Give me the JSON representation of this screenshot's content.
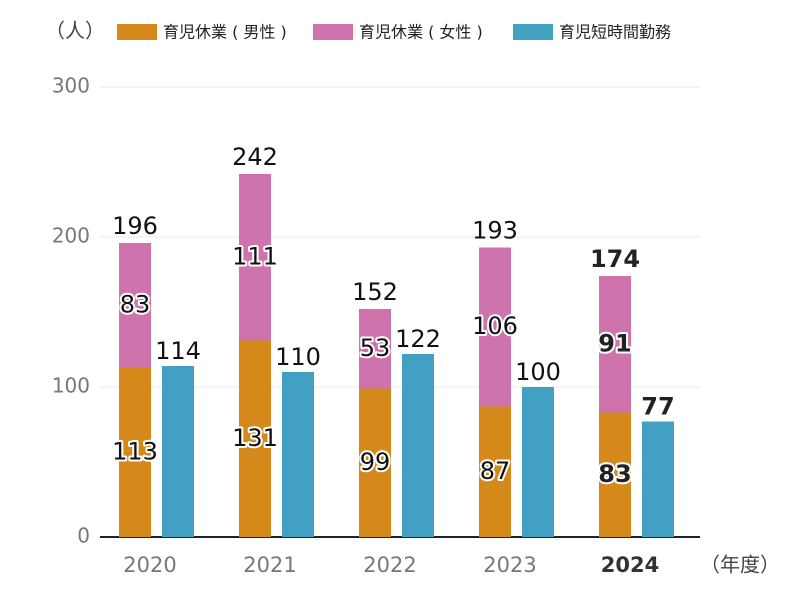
{
  "chart_data": {
    "type": "bar",
    "y_axis_label": "（人）",
    "x_axis_label": "（年度）",
    "categories": [
      "2020",
      "2021",
      "2022",
      "2023",
      "2024"
    ],
    "highlight_index": 4,
    "series": [
      {
        "name": "育児休業 ( 男性 )",
        "color": "#d4891a",
        "stacked": true,
        "values": [
          113,
          131,
          99,
          87,
          83
        ]
      },
      {
        "name": "育児休業 ( 女性 )",
        "color": "#cf73ad",
        "stacked": true,
        "values": [
          83,
          111,
          53,
          106,
          91
        ]
      },
      {
        "name": "育児短時間勤務",
        "color": "#42a0c3",
        "stacked": false,
        "values": [
          114,
          110,
          122,
          100,
          77
        ]
      }
    ],
    "stack_totals": [
      196,
      242,
      152,
      193,
      174
    ],
    "ylim": [
      0,
      300
    ],
    "yticks": [
      0,
      100,
      200,
      300
    ],
    "grid": true
  }
}
